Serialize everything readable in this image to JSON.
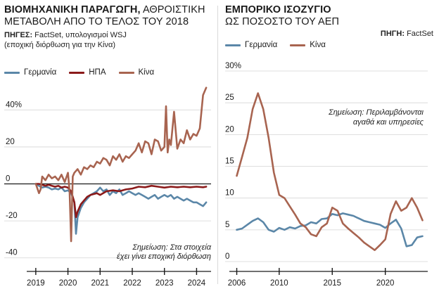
{
  "left": {
    "title_bold": "ΒΙΟΜΗΧΑΝΙΚΗ ΠΑΡΑΓΩΓΗ,",
    "title_rest": " ΑΘΡΟΙΣΤΙΚΗ",
    "title_line2": "ΜΕΤΑΒΟΛΗ ΑΠΟ ΤΟ ΤΕΛΟΣ ΤΟΥ 2018",
    "source_bold": "ΠΗΓΕΣ:",
    "source_rest": " FactSet, υπολογισμοί WSJ",
    "source_line2": "(εποχική διόρθωση για την Κίνα)",
    "note_line1": "Σημείωση: Στα στοιχεία",
    "note_line2": "έχει γίνει εποχική διόρθωση"
  },
  "right": {
    "title_line1": "ΕΜΠΟΡΙΚΟ ΙΣΟΖΥΓΙΟ",
    "title_line2": "ΩΣ ΠΟΣΟΣΤΟ ΤΟΥ ΑΕΠ",
    "source_bold": "ΠΗΓΗ:",
    "source_rest": " FactSet",
    "note_line1": "Σημείωση: Περιλαμβάνονται",
    "note_line2": "αγαθά και υπηρεσίες"
  },
  "colors": {
    "germany": "#5b87a8",
    "usa": "#8b1a1a",
    "china": "#a86450",
    "grid": "#d5d5d5",
    "zero": "#1a1a1a"
  },
  "chart_data": [
    {
      "type": "line",
      "x_unit": "year",
      "xticks": [
        2019,
        2020,
        2021,
        2022,
        2023,
        2024
      ],
      "ytick_labels": [
        "40%",
        "20",
        "0",
        "-20",
        "-40"
      ],
      "yticks": [
        40,
        20,
        0,
        -20,
        -40
      ],
      "ylim": [
        -42,
        50
      ],
      "xlim": [
        2018.85,
        2024.45
      ],
      "grid": true,
      "legend_position": "top",
      "series": [
        {
          "name": "Γερμανία",
          "color": "#5b87a8",
          "x": [
            2019.0,
            2019.1,
            2019.2,
            2019.3,
            2019.4,
            2019.5,
            2019.6,
            2019.7,
            2019.8,
            2019.9,
            2020.0,
            2020.1,
            2020.2,
            2020.25,
            2020.3,
            2020.4,
            2020.5,
            2020.6,
            2020.7,
            2020.8,
            2020.9,
            2021.0,
            2021.1,
            2021.2,
            2021.3,
            2021.4,
            2021.5,
            2021.6,
            2021.7,
            2021.8,
            2021.9,
            2022.0,
            2022.1,
            2022.2,
            2022.3,
            2022.4,
            2022.5,
            2022.6,
            2022.7,
            2022.8,
            2022.9,
            2023.0,
            2023.1,
            2023.2,
            2023.3,
            2023.4,
            2023.5,
            2023.6,
            2023.7,
            2023.8,
            2023.9,
            2024.0,
            2024.1,
            2024.2,
            2024.3
          ],
          "values": [
            0,
            -1,
            -2,
            -1.5,
            -2,
            -3,
            -2.5,
            -3,
            -2,
            -4,
            -3.5,
            -5,
            -10,
            -27,
            -18,
            -13,
            -10,
            -8,
            -6,
            -5,
            -4,
            -2,
            -4,
            -3,
            -6,
            -4,
            -5,
            -3,
            -6,
            -5,
            -4,
            -5,
            -6,
            -5,
            -6,
            -7,
            -8,
            -7,
            -6,
            -8,
            -7,
            -6,
            -7,
            -6,
            -8,
            -7,
            -8,
            -9,
            -8,
            -9,
            -10,
            -10,
            -11,
            -12,
            -10
          ]
        },
        {
          "name": "ΗΠΑ",
          "color": "#8b1a1a",
          "x": [
            2019.0,
            2019.1,
            2019.2,
            2019.3,
            2019.4,
            2019.5,
            2019.6,
            2019.7,
            2019.8,
            2019.9,
            2020.0,
            2020.1,
            2020.2,
            2020.25,
            2020.3,
            2020.4,
            2020.5,
            2020.6,
            2020.7,
            2020.8,
            2020.9,
            2021.0,
            2021.2,
            2021.4,
            2021.6,
            2021.8,
            2022.0,
            2022.2,
            2022.4,
            2022.6,
            2022.8,
            2023.0,
            2023.2,
            2023.4,
            2023.6,
            2023.8,
            2024.0,
            2024.2,
            2024.3
          ],
          "values": [
            0,
            0,
            -0.5,
            -1,
            -0.5,
            -1,
            -1.5,
            -1,
            -2,
            -1.5,
            -2,
            -4,
            -10,
            -18,
            -15,
            -11,
            -9,
            -7,
            -6,
            -5.5,
            -5,
            -6,
            -4,
            -3.5,
            -4,
            -3,
            -2.5,
            -1.5,
            -1.8,
            -1,
            -1.5,
            -2,
            -1.5,
            -1.8,
            -1.5,
            -1.8,
            -1.5,
            -1.8,
            -1.5
          ]
        },
        {
          "name": "Κίνα",
          "color": "#a86450",
          "x": [
            2019.0,
            2019.1,
            2019.15,
            2019.2,
            2019.3,
            2019.4,
            2019.5,
            2019.6,
            2019.7,
            2019.8,
            2019.9,
            2020.0,
            2020.05,
            2020.1,
            2020.15,
            2020.2,
            2020.3,
            2020.4,
            2020.5,
            2020.6,
            2020.7,
            2020.8,
            2020.9,
            2021.0,
            2021.1,
            2021.2,
            2021.3,
            2021.4,
            2021.5,
            2021.6,
            2021.7,
            2021.8,
            2021.9,
            2022.0,
            2022.1,
            2022.2,
            2022.3,
            2022.4,
            2022.5,
            2022.6,
            2022.7,
            2022.8,
            2022.9,
            2023.0,
            2023.05,
            2023.1,
            2023.15,
            2023.2,
            2023.3,
            2023.4,
            2023.5,
            2023.6,
            2023.7,
            2023.8,
            2023.9,
            2024.0,
            2024.1,
            2024.2,
            2024.3
          ],
          "values": [
            0,
            -5,
            -3,
            4,
            2,
            5,
            3,
            4,
            2,
            5,
            1,
            6,
            -4,
            -31,
            4,
            6,
            8,
            5,
            9,
            8,
            10,
            9,
            12,
            11,
            14,
            13,
            10,
            15,
            13,
            16,
            12,
            15,
            14,
            16,
            18,
            22,
            17,
            23,
            22,
            16,
            24,
            23,
            18,
            20,
            42,
            17,
            24,
            21,
            39,
            19,
            24,
            22,
            29,
            24,
            27,
            26,
            30,
            48,
            52
          ]
        }
      ]
    },
    {
      "type": "line",
      "x_unit": "year",
      "xticks": [
        2006,
        2010,
        2015,
        2020
      ],
      "yticks": [
        0,
        5,
        10,
        15,
        20,
        25,
        30
      ],
      "ytick_labels": [
        "0",
        "5",
        "10",
        "15",
        "20",
        "25",
        "30%"
      ],
      "ylim": [
        0,
        31
      ],
      "xlim": [
        2005.7,
        2024.0
      ],
      "grid": true,
      "legend_position": "top",
      "series": [
        {
          "name": "Γερμανία",
          "color": "#5b87a8",
          "x": [
            2006.0,
            2006.5,
            2007.0,
            2007.5,
            2008.0,
            2008.5,
            2009.0,
            2009.5,
            2010.0,
            2010.5,
            2011.0,
            2011.5,
            2012.0,
            2012.5,
            2013.0,
            2013.5,
            2014.0,
            2014.5,
            2015.0,
            2015.5,
            2016.0,
            2016.5,
            2017.0,
            2017.5,
            2018.0,
            2018.5,
            2019.0,
            2019.5,
            2020.0,
            2020.5,
            2021.0,
            2021.5,
            2022.0,
            2022.5,
            2023.0,
            2023.5
          ],
          "values": [
            5.0,
            5.2,
            5.8,
            6.4,
            6.8,
            6.2,
            5.0,
            4.7,
            5.3,
            5.0,
            5.4,
            5.2,
            5.6,
            5.7,
            6.2,
            6.0,
            6.7,
            6.8,
            7.5,
            7.3,
            7.6,
            7.4,
            7.2,
            6.8,
            6.4,
            6.2,
            6.0,
            5.8,
            5.3,
            6.0,
            6.6,
            5.2,
            2.4,
            2.6,
            3.8,
            4.0
          ]
        },
        {
          "name": "Κίνα",
          "color": "#a86450",
          "x": [
            2006.0,
            2006.5,
            2007.0,
            2007.5,
            2008.0,
            2008.5,
            2009.0,
            2009.5,
            2010.0,
            2010.5,
            2011.0,
            2011.5,
            2012.0,
            2012.5,
            2013.0,
            2013.5,
            2014.0,
            2014.5,
            2015.0,
            2015.5,
            2016.0,
            2016.5,
            2017.0,
            2017.5,
            2018.0,
            2018.5,
            2019.0,
            2019.5,
            2020.0,
            2020.5,
            2021.0,
            2021.5,
            2022.0,
            2022.5,
            2023.0,
            2023.5
          ],
          "values": [
            13.5,
            16.5,
            19.5,
            24.0,
            26.5,
            24.0,
            19.5,
            14.0,
            10.5,
            10.0,
            8.7,
            7.4,
            6.0,
            5.4,
            4.3,
            4.0,
            5.4,
            6.0,
            8.5,
            8.0,
            6.0,
            5.2,
            4.5,
            3.8,
            3.0,
            2.4,
            1.8,
            2.6,
            3.5,
            7.5,
            9.5,
            8.0,
            8.5,
            10.0,
            8.5,
            6.5
          ]
        }
      ]
    }
  ]
}
